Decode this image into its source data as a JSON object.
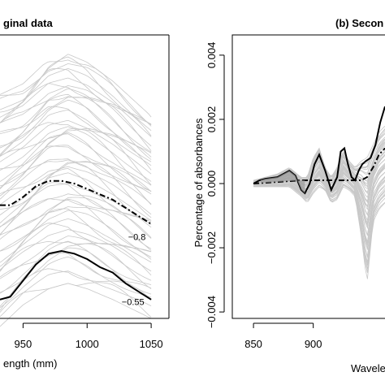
{
  "chart_data": [
    {
      "type": "line",
      "title": "ginal data",
      "xlabel": "ength (mm)",
      "ylabel": "",
      "xlim": [
        932,
        1055
      ],
      "ylim": [
        0.05,
        1.05
      ],
      "x_ticks": [
        "950",
        "1000",
        "1050"
      ],
      "x_tick_values": [
        950,
        1000,
        1050
      ],
      "annotations": [
        {
          "text": "−0.8",
          "x": 1032,
          "y": 0.34
        },
        {
          "text": "−0.55",
          "x": 1027,
          "y": 0.1
        }
      ],
      "series": [
        {
          "style": "solid-black",
          "x": [
            932,
            940,
            950,
            960,
            970,
            980,
            990,
            1000,
            1010,
            1020,
            1030,
            1040,
            1050
          ],
          "y": [
            0.12,
            0.13,
            0.19,
            0.25,
            0.29,
            0.3,
            0.29,
            0.27,
            0.24,
            0.22,
            0.18,
            0.15,
            0.12
          ]
        },
        {
          "style": "dash-dot-black",
          "x": [
            932,
            940,
            950,
            960,
            970,
            980,
            990,
            1000,
            1010,
            1020,
            1030,
            1040,
            1050
          ],
          "y": [
            0.47,
            0.47,
            0.5,
            0.54,
            0.56,
            0.56,
            0.55,
            0.53,
            0.51,
            0.49,
            0.46,
            0.43,
            0.4
          ]
        }
      ],
      "grey_band": {
        "x": [
          932,
          950,
          970,
          985,
          1000,
          1020,
          1050
        ],
        "low": [
          0.02,
          0.1,
          0.16,
          0.18,
          0.16,
          0.12,
          0.05
        ],
        "high": [
          0.88,
          0.92,
          1.01,
          1.03,
          1.0,
          0.93,
          0.8
        ]
      }
    },
    {
      "type": "line",
      "title": "(b) Secon",
      "xlabel": "Wavele",
      "ylabel": "Percentage of absorbances",
      "xlim": [
        835,
        960
      ],
      "ylim": [
        -0.0042,
        0.0042
      ],
      "x_ticks": [
        "850",
        "900"
      ],
      "x_tick_values": [
        850,
        900
      ],
      "y_ticks": [
        "−0.004",
        "−0.002",
        "0.000",
        "0.002",
        "0.004"
      ],
      "y_tick_values": [
        -0.004,
        -0.002,
        0.0,
        0.002,
        0.004
      ],
      "series": [
        {
          "style": "solid-black",
          "x": [
            850,
            855,
            860,
            870,
            880,
            885,
            890,
            893,
            897,
            901,
            905,
            910,
            915,
            920,
            923,
            926,
            929,
            932,
            935,
            938,
            941,
            944,
            948,
            952,
            956,
            960
          ],
          "y": [
            0.0,
            0.0001,
            0.00015,
            0.0002,
            0.0004,
            0.00025,
            -0.0002,
            -0.0003,
            0.0,
            0.0006,
            0.0009,
            0.0004,
            -0.0002,
            0.0002,
            0.001,
            0.0011,
            0.0006,
            0.0002,
            0.0001,
            0.0004,
            0.0006,
            0.0007,
            0.0008,
            0.0012,
            0.0019,
            0.0024
          ]
        },
        {
          "style": "dash-dot-black",
          "x": [
            850,
            870,
            890,
            900,
            910,
            920,
            930,
            940,
            945,
            950,
            955,
            960
          ],
          "y": [
            0.0,
            5e-05,
            0.0001,
            0.0001,
            0.0001,
            0.0001,
            0.0001,
            0.0001,
            0.0002,
            0.0005,
            0.0009,
            0.0011
          ]
        }
      ],
      "grey_band": {
        "x": [
          850,
          860,
          870,
          880,
          890,
          895,
          900,
          905,
          910,
          915,
          920,
          925,
          930,
          935,
          940,
          945,
          950,
          955,
          960
        ],
        "low": [
          -0.0001,
          -0.0001,
          -0.0001,
          -0.0001,
          -0.0004,
          -0.0006,
          -0.0003,
          -0.0001,
          -0.0002,
          -0.0006,
          -0.0005,
          -0.0001,
          -0.0002,
          -0.0004,
          -0.0016,
          -0.0031,
          -0.0012,
          -0.0008,
          -0.0006
        ],
        "high": [
          0.0001,
          0.0002,
          0.0003,
          0.0005,
          0.0002,
          0.0002,
          0.0008,
          0.0011,
          0.0005,
          0.0002,
          0.0005,
          0.001,
          0.0007,
          0.0005,
          0.0007,
          0.0008,
          0.0012,
          0.0016,
          0.0018
        ]
      }
    }
  ]
}
